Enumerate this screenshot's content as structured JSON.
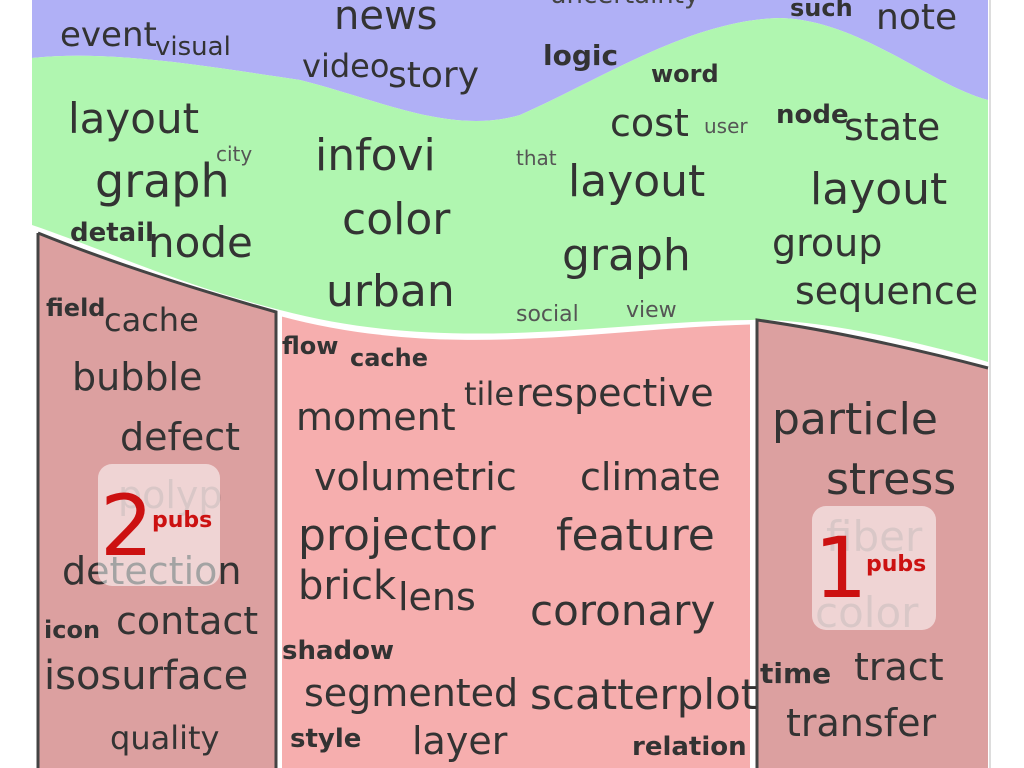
{
  "colors": {
    "top_band": "#b0b0f6",
    "middle_band": "#b0f6b0",
    "left_panel": "#dca0a0",
    "center_panel": "#f6aeae",
    "right_panel": "#dca0a0",
    "badge_text": "#cc1111",
    "word_text": "#333333",
    "border": "#444444"
  },
  "top_band": {
    "words": [
      "event",
      "visual",
      "news",
      "video",
      "story",
      "logic",
      "word",
      "such",
      "note",
      "uncertainty"
    ]
  },
  "middle_band": {
    "words": [
      "layout",
      "city",
      "graph",
      "detail",
      "node",
      "infovi",
      "color",
      "urban",
      "cost",
      "user",
      "that",
      "layout",
      "graph",
      "social",
      "view",
      "node",
      "state",
      "layout",
      "group",
      "sequence"
    ]
  },
  "left_panel": {
    "words": [
      "field",
      "cache",
      "bubble",
      "defect",
      "polyp",
      "detection",
      "icon",
      "contact",
      "isosurface",
      "quality"
    ],
    "badge": {
      "number": "2",
      "label": "pubs"
    }
  },
  "center_panel": {
    "words": [
      "flow",
      "cache",
      "moment",
      "tile",
      "respective",
      "volumetric",
      "climate",
      "projector",
      "feature",
      "brick",
      "lens",
      "coronary",
      "shadow",
      "segmented",
      "scatterplot",
      "style",
      "layer",
      "relation"
    ]
  },
  "right_panel": {
    "words": [
      "particle",
      "stress",
      "fiber",
      "color",
      "time",
      "tract",
      "transfer"
    ],
    "badge": {
      "number": "1",
      "label": "pubs"
    }
  }
}
